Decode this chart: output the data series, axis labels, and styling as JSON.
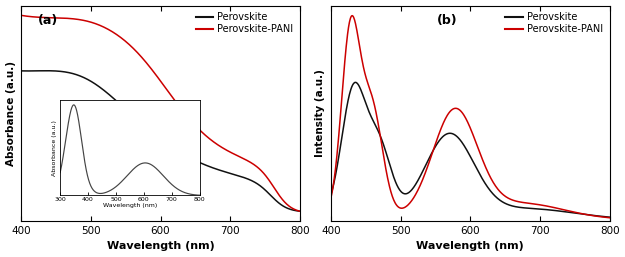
{
  "panel_a": {
    "xlabel": "Wavelength (nm)",
    "ylabel": "Absorbance (a.u.)",
    "label": "(a)",
    "xlim": [
      400,
      800
    ],
    "xticks": [
      400,
      500,
      600,
      700,
      800
    ],
    "legend": [
      "Perovskite",
      "Perovskite-PANI"
    ],
    "colors": [
      "#111111",
      "#cc0000"
    ]
  },
  "panel_b": {
    "xlabel": "Wavelength (nm)",
    "ylabel": "Intensity (a.u.)",
    "label": "(b)",
    "xlim": [
      400,
      800
    ],
    "xticks": [
      400,
      500,
      600,
      700,
      800
    ],
    "legend": [
      "Perovskite",
      "Perovskite-PANI"
    ],
    "colors": [
      "#111111",
      "#cc0000"
    ]
  },
  "inset": {
    "xlabel": "Wavelength (nm)",
    "ylabel": "Absorbance (a.u.)",
    "xlim": [
      300,
      800
    ],
    "xticks": [
      300,
      400,
      500,
      600,
      700,
      800
    ]
  }
}
